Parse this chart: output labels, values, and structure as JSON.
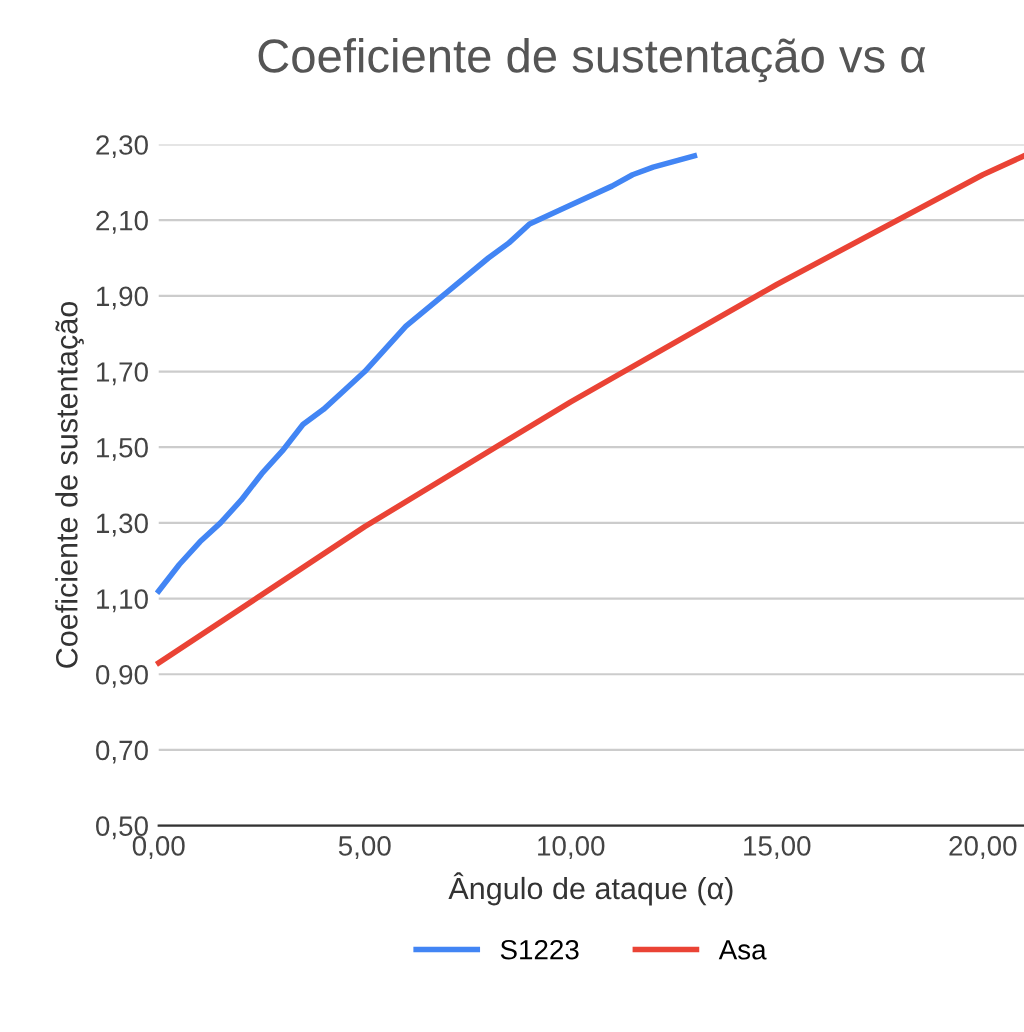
{
  "chart_data": {
    "type": "line",
    "title": "Coeficiente de sustentação vs α",
    "xlabel": "Ângulo de ataque (α)",
    "ylabel": "Coeficiente de sustentação",
    "series": [
      {
        "name": "S1223",
        "color": "#4285f4",
        "x": [
          0,
          0.5,
          1,
          1.5,
          2,
          2.5,
          3,
          3.5,
          4,
          4.5,
          5,
          5.5,
          6,
          7,
          8,
          8.5,
          9,
          10,
          11,
          11.5,
          12,
          13
        ],
        "values": [
          1.12,
          1.19,
          1.25,
          1.3,
          1.36,
          1.43,
          1.49,
          1.56,
          1.6,
          1.65,
          1.7,
          1.76,
          1.82,
          1.91,
          2.0,
          2.04,
          2.09,
          2.14,
          2.19,
          2.22,
          2.24,
          2.27
        ]
      },
      {
        "name": "Asa",
        "color": "#ea4335",
        "x": [
          0,
          5,
          10,
          15,
          20,
          21
        ],
        "values": [
          0.93,
          1.29,
          1.62,
          1.93,
          2.22,
          2.27
        ]
      }
    ],
    "xlim": [
      0,
      21
    ],
    "xticks": [
      {
        "value": 0,
        "label": "0,00"
      },
      {
        "value": 5,
        "label": "5,00"
      },
      {
        "value": 10,
        "label": "10,00"
      },
      {
        "value": 15,
        "label": "15,00"
      },
      {
        "value": 20,
        "label": "20,00"
      }
    ],
    "ylim": [
      0.5,
      2.3
    ],
    "yticks": [
      {
        "value": 0.5,
        "label": "0,50"
      },
      {
        "value": 0.7,
        "label": "0,70"
      },
      {
        "value": 0.9,
        "label": "0,90"
      },
      {
        "value": 1.1,
        "label": "1,10"
      },
      {
        "value": 1.3,
        "label": "1,30"
      },
      {
        "value": 1.5,
        "label": "1,50"
      },
      {
        "value": 1.7,
        "label": "1,70"
      },
      {
        "value": 1.9,
        "label": "1,90"
      },
      {
        "value": 2.1,
        "label": "2,10"
      },
      {
        "value": 2.3,
        "label": "2,30"
      }
    ],
    "grid": "y",
    "legend": "bottom",
    "marker": "none",
    "line_style": "solid"
  }
}
